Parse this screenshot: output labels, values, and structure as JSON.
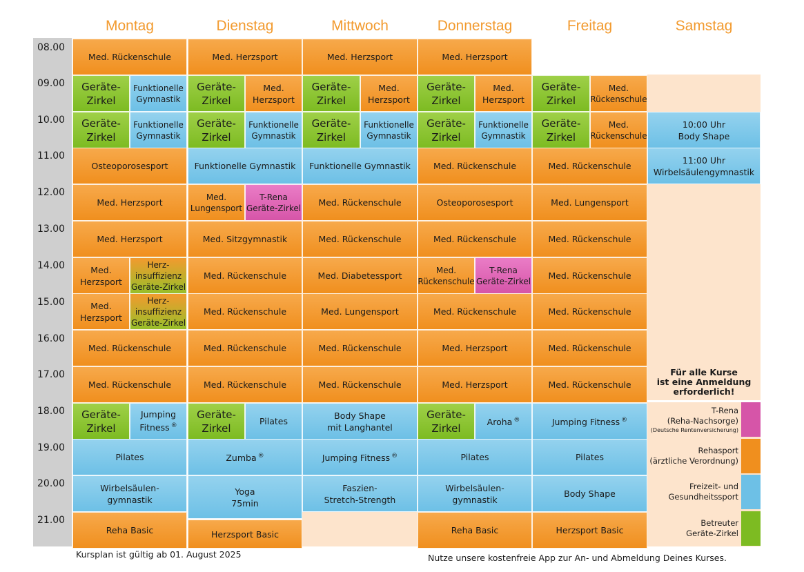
{
  "days": [
    "Montag",
    "Dienstag",
    "Mittwoch",
    "Donnerstag",
    "Freitag",
    "Samstag"
  ],
  "times": [
    "08.00",
    "09.00",
    "10.00",
    "11.00",
    "12.00",
    "13.00",
    "14.00",
    "15.00",
    "16.00",
    "17.00",
    "18.00",
    "19.00",
    "20.00",
    "21.00"
  ],
  "courses": {
    "rueckenschule": "Med. Rückenschule",
    "herzsport": "Med. Herzsport",
    "geraete_zirkel": "Geräte-\nZirkel",
    "funktionelle_gym": "Funktionelle\nGymnastik",
    "herzsport_2l": "Med.\nHerzsport",
    "rueckenschule_2l": "Med.\nRückenschule",
    "osteoporose": "Osteoporosesport",
    "funktionelle_gym_1l": "Funktionelle Gymnastik",
    "lungensport_2l": "Med.\nLungensport",
    "trena_zirkel": "T-Rena\nGeräte-Zirkel",
    "lungensport": "Med. Lungensport",
    "sitzgymnastik": "Med. Sitzgymnastik",
    "herzinsuffizienz": "Herz-\ninsuffizienz\nGeräte-Zirkel",
    "diabetessport": "Med. Diabetessport",
    "pilates": "Pilates",
    "body_shape_langhantel": "Body Shape\nmit Langhantel",
    "jumping_fitness": "Jumping Fitness",
    "jumping_fitness_2l": "Jumping\nFitness",
    "aroha": "Aroha",
    "zumba": "Zumba",
    "registered": "®",
    "wirbelsaeulen_gym": "Wirbelsäulen-\ngymnastik",
    "yoga": "Yoga\n75min",
    "faszien": "Faszien-\nStretch-Strength",
    "body_shape": "Body Shape",
    "reha_basic": "Reha Basic",
    "herzsport_basic": "Herzsport Basic",
    "sa_1000": "10:00 Uhr\nBody Shape",
    "sa_1100": "11:00 Uhr\nWirbelsäulengymnastik"
  },
  "note": "Für alle Kurse\nist eine Anmeldung\nerforderlich!",
  "legend": [
    {
      "label": "T-Rena\n(Reha-Nachsorge)",
      "sub": "(Deutsche Rentenversicherung)",
      "color": "#d655a8"
    },
    {
      "label": "Rehasport\n(ärztliche Verordnung)",
      "sub": "",
      "color": "#f08f1e"
    },
    {
      "label": "Freizeit- und\nGesundheitssport",
      "sub": "",
      "color": "#6dc0e6"
    },
    {
      "label": "Betreuter\nGeräte-Zirkel",
      "sub": "",
      "color": "#7dbb22"
    }
  ],
  "footer": {
    "valid": "Kursplan ist gültig ab 01. August 2025",
    "app": "Nutze unsere kostenfreie App zur An- und Abmeldung Deines Kurses."
  },
  "colors": {
    "orange": "#f08f1e",
    "blue": "#6dc0e6",
    "green": "#7dbb22",
    "pink": "#d655a8",
    "peach": "#fde4cc",
    "heading": "#f29a2e"
  }
}
